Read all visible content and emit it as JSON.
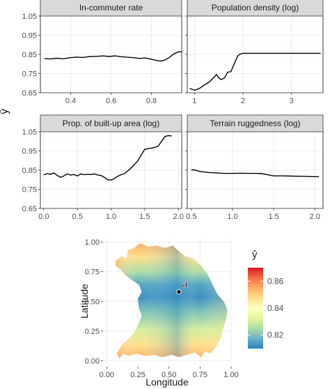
{
  "y_symbol": "ŷ",
  "chart_data": [
    {
      "type": "line",
      "title": "In-commuter rate",
      "xlim": [
        0.25,
        0.95
      ],
      "ylim": [
        0.65,
        1.05
      ],
      "xticks": [
        0.4,
        0.6,
        0.8
      ],
      "xtick_labels": [
        "0.4",
        "0.6",
        "0.8"
      ],
      "yticks": [
        0.65,
        0.75,
        0.85,
        0.95,
        1.05
      ],
      "ytick_labels": [
        "0.65",
        "0.75",
        "0.85",
        "0.95",
        "1.05"
      ],
      "show_x_ticks": true,
      "show_y_ticks": true,
      "points": [
        [
          0.27,
          0.828
        ],
        [
          0.3,
          0.826
        ],
        [
          0.33,
          0.83
        ],
        [
          0.36,
          0.827
        ],
        [
          0.4,
          0.833
        ],
        [
          0.43,
          0.836
        ],
        [
          0.46,
          0.834
        ],
        [
          0.5,
          0.839
        ],
        [
          0.53,
          0.84
        ],
        [
          0.56,
          0.842
        ],
        [
          0.59,
          0.839
        ],
        [
          0.62,
          0.842
        ],
        [
          0.65,
          0.838
        ],
        [
          0.68,
          0.835
        ],
        [
          0.71,
          0.833
        ],
        [
          0.74,
          0.829
        ],
        [
          0.77,
          0.831
        ],
        [
          0.8,
          0.825
        ],
        [
          0.83,
          0.817
        ],
        [
          0.85,
          0.815
        ],
        [
          0.87,
          0.822
        ],
        [
          0.89,
          0.835
        ],
        [
          0.91,
          0.852
        ],
        [
          0.93,
          0.862
        ],
        [
          0.95,
          0.864
        ]
      ]
    },
    {
      "type": "line",
      "title": "Population density (log)",
      "xlim": [
        0.85,
        3.65
      ],
      "ylim": [
        0.65,
        1.05
      ],
      "xticks": [
        1,
        2,
        3
      ],
      "xtick_labels": [
        "1",
        "2",
        "3"
      ],
      "yticks": [
        0.65,
        0.75,
        0.85,
        0.95,
        1.05
      ],
      "ytick_labels": [],
      "show_x_ticks": true,
      "show_y_ticks": false,
      "points": [
        [
          0.9,
          0.672
        ],
        [
          1.0,
          0.663
        ],
        [
          1.1,
          0.672
        ],
        [
          1.2,
          0.69
        ],
        [
          1.3,
          0.705
        ],
        [
          1.4,
          0.73
        ],
        [
          1.45,
          0.745
        ],
        [
          1.5,
          0.728
        ],
        [
          1.55,
          0.718
        ],
        [
          1.62,
          0.728
        ],
        [
          1.68,
          0.757
        ],
        [
          1.75,
          0.76
        ],
        [
          1.8,
          0.79
        ],
        [
          1.85,
          0.82
        ],
        [
          1.9,
          0.845
        ],
        [
          1.95,
          0.852
        ],
        [
          2.0,
          0.856
        ],
        [
          2.5,
          0.856
        ],
        [
          3.0,
          0.856
        ],
        [
          3.6,
          0.856
        ]
      ]
    },
    {
      "type": "line",
      "title": "Prop. of built-up area (log)",
      "xlim": [
        -0.05,
        2.05
      ],
      "ylim": [
        0.65,
        1.05
      ],
      "xticks": [
        0.0,
        0.5,
        1.0,
        1.5,
        2.0
      ],
      "xtick_labels": [
        "0.0",
        "0.5",
        "1.0",
        "1.5",
        "2.0"
      ],
      "yticks": [
        0.65,
        0.75,
        0.85,
        0.95,
        1.05
      ],
      "ytick_labels": [
        "0.65",
        "0.75",
        "0.85",
        "0.95",
        "1.05"
      ],
      "show_x_ticks": true,
      "show_y_ticks": true,
      "points": [
        [
          0.0,
          0.825
        ],
        [
          0.05,
          0.832
        ],
        [
          0.1,
          0.828
        ],
        [
          0.15,
          0.835
        ],
        [
          0.2,
          0.822
        ],
        [
          0.25,
          0.812
        ],
        [
          0.3,
          0.82
        ],
        [
          0.35,
          0.83
        ],
        [
          0.4,
          0.824
        ],
        [
          0.45,
          0.827
        ],
        [
          0.5,
          0.82
        ],
        [
          0.55,
          0.83
        ],
        [
          0.6,
          0.826
        ],
        [
          0.65,
          0.828
        ],
        [
          0.7,
          0.827
        ],
        [
          0.75,
          0.83
        ],
        [
          0.8,
          0.825
        ],
        [
          0.85,
          0.822
        ],
        [
          0.9,
          0.812
        ],
        [
          0.95,
          0.8
        ],
        [
          1.0,
          0.798
        ],
        [
          1.05,
          0.806
        ],
        [
          1.1,
          0.818
        ],
        [
          1.15,
          0.826
        ],
        [
          1.2,
          0.832
        ],
        [
          1.25,
          0.846
        ],
        [
          1.3,
          0.862
        ],
        [
          1.35,
          0.88
        ],
        [
          1.4,
          0.9
        ],
        [
          1.45,
          0.93
        ],
        [
          1.5,
          0.958
        ],
        [
          1.55,
          0.962
        ],
        [
          1.6,
          0.965
        ],
        [
          1.65,
          0.968
        ],
        [
          1.7,
          0.975
        ],
        [
          1.75,
          1.0
        ],
        [
          1.8,
          1.025
        ],
        [
          1.85,
          1.03
        ],
        [
          1.9,
          1.028
        ]
      ]
    },
    {
      "type": "line",
      "title": "Terrain ruggedness (log)",
      "xlim": [
        0.45,
        2.1
      ],
      "ylim": [
        0.65,
        1.05
      ],
      "xticks": [
        0.5,
        1.0,
        1.5,
        2.0
      ],
      "xtick_labels": [
        "0.5",
        "1.0",
        "1.5",
        "2.0"
      ],
      "yticks": [
        0.65,
        0.75,
        0.85,
        0.95,
        1.05
      ],
      "ytick_labels": [],
      "show_x_ticks": true,
      "show_y_ticks": false,
      "points": [
        [
          0.5,
          0.852
        ],
        [
          0.55,
          0.85
        ],
        [
          0.6,
          0.843
        ],
        [
          0.7,
          0.838
        ],
        [
          0.8,
          0.835
        ],
        [
          0.9,
          0.833
        ],
        [
          1.0,
          0.833
        ],
        [
          1.1,
          0.834
        ],
        [
          1.2,
          0.833
        ],
        [
          1.3,
          0.833
        ],
        [
          1.35,
          0.832
        ],
        [
          1.4,
          0.828
        ],
        [
          1.5,
          0.82
        ],
        [
          1.6,
          0.82
        ],
        [
          1.7,
          0.819
        ],
        [
          1.8,
          0.818
        ],
        [
          1.9,
          0.817
        ],
        [
          2.0,
          0.816
        ],
        [
          2.05,
          0.816
        ]
      ]
    },
    {
      "type": "heatmap",
      "xlabel": "Longitude",
      "ylabel": "Latitude",
      "xlim": [
        -0.03,
        1.0
      ],
      "ylim": [
        -0.05,
        1.03
      ],
      "xticks": [
        0.0,
        0.25,
        0.5,
        0.75,
        1.0
      ],
      "xtick_labels": [
        "0.00",
        "0.25",
        "0.50",
        "0.75",
        "1.00"
      ],
      "yticks": [
        0.0,
        0.25,
        0.5,
        0.75,
        1.0
      ],
      "ytick_labels": [
        "0.00",
        "0.25",
        "0.50",
        "0.75",
        "1.00"
      ],
      "grid": true,
      "point": {
        "label": "a",
        "x": 0.58,
        "y": 0.58
      },
      "legend": {
        "title": "ŷ",
        "placement": "right",
        "range": [
          0.81,
          0.87
        ],
        "ticks": [
          0.82,
          0.84,
          0.86
        ],
        "tick_labels": [
          "0.82",
          "0.84",
          "0.86"
        ],
        "colors": [
          "#2b83ba",
          "#6bb0c9",
          "#abdda4",
          "#e6f598",
          "#ffffbf",
          "#fee08b",
          "#fdae61",
          "#f46d43",
          "#d7191c"
        ]
      }
    }
  ]
}
